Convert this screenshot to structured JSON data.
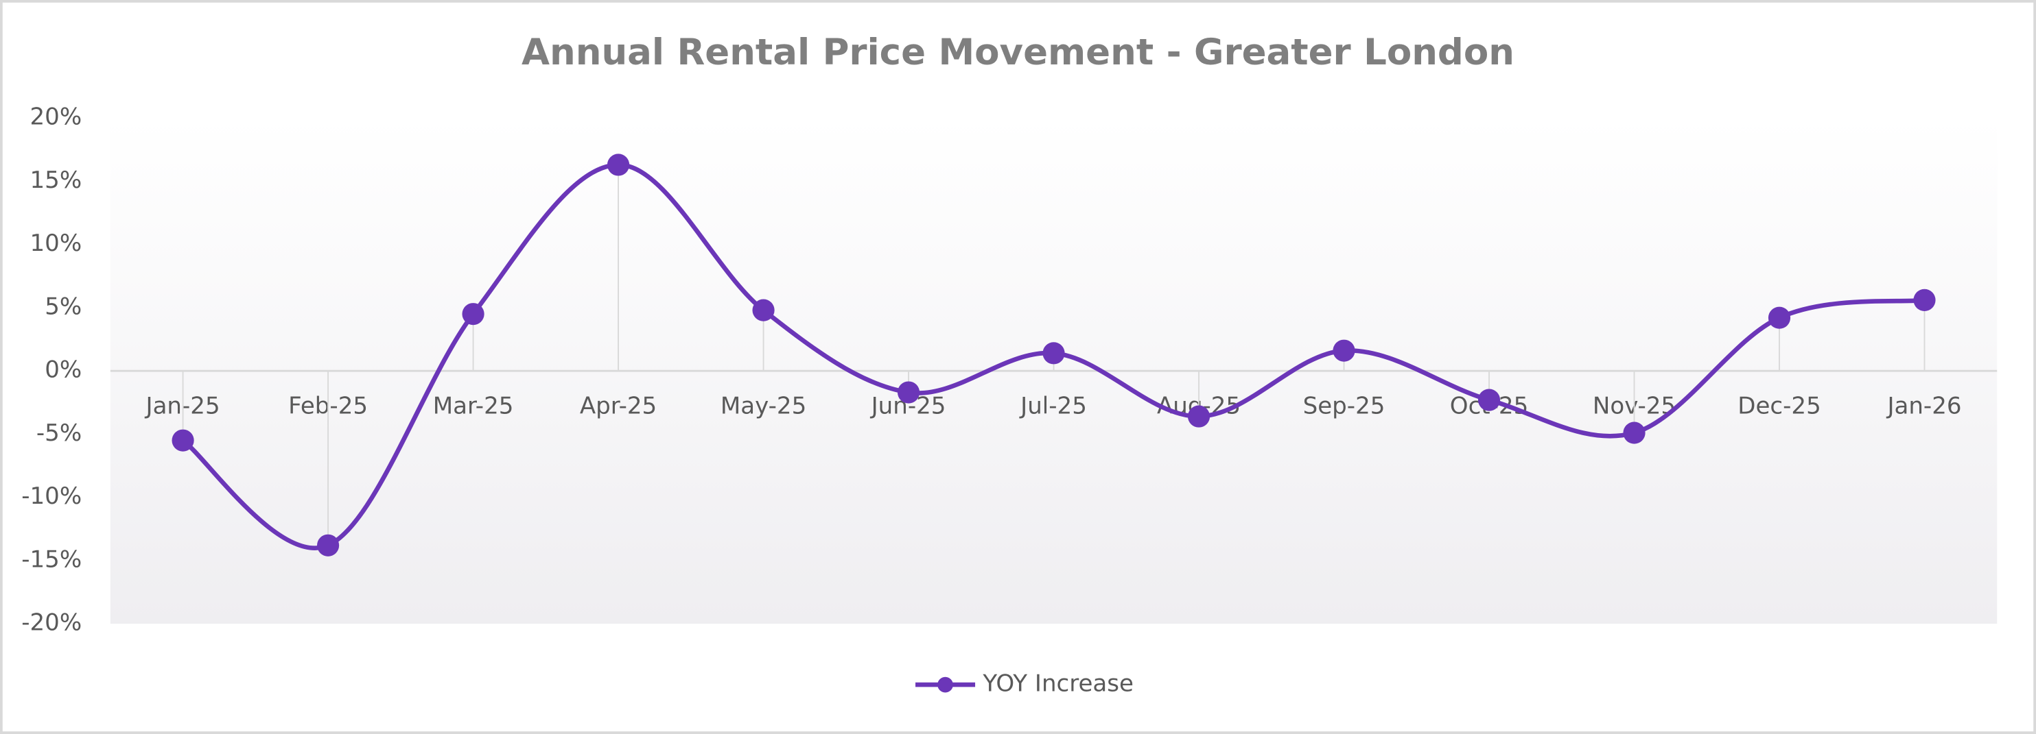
{
  "chart_data": {
    "type": "line",
    "title": "Annual Rental Price Movement - Greater London",
    "categories": [
      "Jan-25",
      "Feb-25",
      "Mar-25",
      "Apr-25",
      "May-25",
      "Jun-25",
      "Jul-25",
      "Aug-25",
      "Sep-25",
      "Oct-25",
      "Nov-25",
      "Dec-25",
      "Jan-26"
    ],
    "series": [
      {
        "name": "YOY Increase",
        "color": "#6b36b8",
        "values": [
          -5.5,
          -13.8,
          4.5,
          16.3,
          4.8,
          -1.7,
          1.4,
          -3.6,
          1.6,
          -2.3,
          -4.9,
          4.2,
          5.6
        ]
      }
    ],
    "ylim": [
      -20,
      20
    ],
    "yticks": [
      {
        "value": -20,
        "label": "-20%"
      },
      {
        "value": -15,
        "label": "-15%"
      },
      {
        "value": -10,
        "label": "-10%"
      },
      {
        "value": -5,
        "label": "-5%"
      },
      {
        "value": 0,
        "label": "0%"
      },
      {
        "value": 5,
        "label": "5%"
      },
      {
        "value": 10,
        "label": "10%"
      },
      {
        "value": 15,
        "label": "15%"
      },
      {
        "value": 20,
        "label": "20%"
      }
    ],
    "smooth": true,
    "drop_lines": true,
    "legend": "bottom"
  }
}
